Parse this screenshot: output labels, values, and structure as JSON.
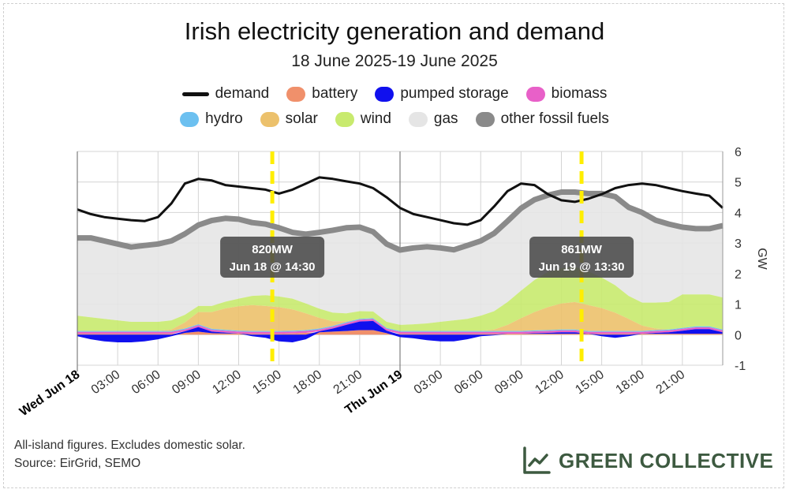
{
  "chart_data": {
    "type": "area",
    "title": "Irish electricity generation and demand",
    "subtitle": "18 June 2025-19 June 2025",
    "ylabel": "GW",
    "ylim": [
      -1,
      6
    ],
    "yticks": [
      "6",
      "5",
      "4",
      "3",
      "2",
      "1",
      "0",
      "-1"
    ],
    "xlim": [
      0,
      48
    ],
    "x_ticks": [
      {
        "label": "Wed Jun 18",
        "bold": true
      },
      {
        "label": "03:00"
      },
      {
        "label": "06:00"
      },
      {
        "label": "09:00"
      },
      {
        "label": "12:00"
      },
      {
        "label": "15:00"
      },
      {
        "label": "18:00"
      },
      {
        "label": "21:00"
      },
      {
        "label": "Thu Jun 19",
        "bold": true
      },
      {
        "label": "03:00"
      },
      {
        "label": "06:00"
      },
      {
        "label": "09:00"
      },
      {
        "label": "12:00"
      },
      {
        "label": "15:00"
      },
      {
        "label": "18:00"
      },
      {
        "label": "21:00"
      }
    ],
    "x": [
      0,
      1,
      2,
      3,
      4,
      5,
      6,
      7,
      8,
      9,
      10,
      11,
      12,
      13,
      14,
      15,
      16,
      17,
      18,
      19,
      20,
      21,
      22,
      23,
      24,
      25,
      26,
      27,
      28,
      29,
      30,
      31,
      32,
      33,
      34,
      35,
      36,
      37,
      38,
      39,
      40,
      41,
      42,
      43,
      44,
      45,
      46,
      47,
      48
    ],
    "series": [
      {
        "name": "battery",
        "color": "#f0906b",
        "values": [
          0.03,
          0.03,
          0.03,
          0.03,
          0.03,
          0.03,
          0.03,
          0.03,
          0.06,
          0.1,
          0.05,
          0.04,
          0.04,
          0.03,
          0.03,
          0.03,
          0.04,
          0.06,
          0.08,
          0.1,
          0.12,
          0.15,
          0.15,
          0.05,
          0.03,
          0.03,
          0.03,
          0.03,
          0.03,
          0.03,
          0.03,
          0.03,
          0.03,
          0.03,
          0.03,
          0.03,
          0.03,
          0.03,
          0.03,
          0.03,
          0.03,
          0.03,
          0.03,
          0.03,
          0.03,
          0.03,
          0.03,
          0.03,
          0.03
        ]
      },
      {
        "name": "pumped storage",
        "color": "#1010ee",
        "values": [
          -0.05,
          -0.15,
          -0.22,
          -0.25,
          -0.25,
          -0.22,
          -0.15,
          -0.05,
          0.05,
          0.15,
          0.05,
          0.03,
          0.0,
          -0.05,
          -0.1,
          -0.22,
          -0.25,
          -0.15,
          0.03,
          0.1,
          0.2,
          0.28,
          0.3,
          0.08,
          -0.08,
          -0.12,
          -0.18,
          -0.22,
          -0.22,
          -0.15,
          -0.05,
          -0.02,
          0.0,
          0.0,
          0.02,
          0.03,
          0.05,
          0.05,
          0.0,
          -0.05,
          -0.1,
          -0.05,
          0.0,
          0.03,
          0.05,
          0.1,
          0.15,
          0.15,
          0.05
        ]
      },
      {
        "name": "biomass",
        "color": "#e860c8",
        "values": [
          0.06,
          0.06,
          0.06,
          0.06,
          0.06,
          0.06,
          0.06,
          0.06,
          0.06,
          0.06,
          0.06,
          0.06,
          0.06,
          0.06,
          0.06,
          0.06,
          0.06,
          0.06,
          0.06,
          0.06,
          0.06,
          0.06,
          0.06,
          0.06,
          0.06,
          0.06,
          0.06,
          0.06,
          0.06,
          0.06,
          0.06,
          0.06,
          0.06,
          0.06,
          0.06,
          0.06,
          0.06,
          0.06,
          0.06,
          0.06,
          0.06,
          0.06,
          0.06,
          0.06,
          0.06,
          0.06,
          0.06,
          0.06,
          0.06
        ]
      },
      {
        "name": "hydro",
        "color": "#6cc0f0",
        "values": [
          0.03,
          0.03,
          0.03,
          0.03,
          0.03,
          0.03,
          0.03,
          0.03,
          0.03,
          0.03,
          0.03,
          0.03,
          0.03,
          0.03,
          0.03,
          0.03,
          0.03,
          0.03,
          0.03,
          0.03,
          0.03,
          0.03,
          0.03,
          0.03,
          0.03,
          0.03,
          0.03,
          0.03,
          0.03,
          0.03,
          0.03,
          0.03,
          0.03,
          0.03,
          0.03,
          0.03,
          0.03,
          0.03,
          0.03,
          0.03,
          0.03,
          0.03,
          0.03,
          0.03,
          0.03,
          0.03,
          0.03,
          0.03,
          0.03
        ]
      },
      {
        "name": "solar",
        "color": "#ecc16c",
        "values": [
          0,
          0,
          0,
          0,
          0,
          0,
          0,
          0.05,
          0.2,
          0.4,
          0.55,
          0.7,
          0.8,
          0.85,
          0.82,
          0.78,
          0.7,
          0.55,
          0.35,
          0.15,
          0.03,
          0,
          0,
          0,
          0,
          0,
          0,
          0,
          0,
          0,
          0,
          0.05,
          0.2,
          0.42,
          0.6,
          0.75,
          0.85,
          0.9,
          0.85,
          0.75,
          0.6,
          0.4,
          0.18,
          0.05,
          0,
          0,
          0,
          0,
          0
        ]
      },
      {
        "name": "wind",
        "color": "#c8ea6e",
        "values": [
          0.5,
          0.45,
          0.4,
          0.35,
          0.3,
          0.3,
          0.3,
          0.3,
          0.25,
          0.2,
          0.2,
          0.22,
          0.25,
          0.3,
          0.35,
          0.35,
          0.35,
          0.32,
          0.3,
          0.28,
          0.26,
          0.25,
          0.22,
          0.2,
          0.2,
          0.22,
          0.25,
          0.3,
          0.35,
          0.4,
          0.5,
          0.6,
          0.75,
          0.9,
          1.05,
          1.15,
          1.15,
          1.15,
          1.1,
          1.0,
          0.9,
          0.75,
          0.75,
          0.85,
          0.9,
          1.1,
          1.05,
          1.05,
          1.05
        ]
      },
      {
        "name": "gas",
        "color": "#e5e5e5",
        "values": [
          2.5,
          2.55,
          2.5,
          2.45,
          2.4,
          2.45,
          2.5,
          2.55,
          2.6,
          2.6,
          2.75,
          2.68,
          2.55,
          2.35,
          2.28,
          2.2,
          2.12,
          2.22,
          2.45,
          2.65,
          2.75,
          2.7,
          2.56,
          2.5,
          2.4,
          2.45,
          2.46,
          2.37,
          2.26,
          2.35,
          2.4,
          2.5,
          2.6,
          2.65,
          2.58,
          2.47,
          2.45,
          2.4,
          2.5,
          2.7,
          2.85,
          2.85,
          2.9,
          2.65,
          2.5,
          2.15,
          2.1,
          2.1,
          2.3
        ]
      },
      {
        "name": "other fossil fuels",
        "color": "#8a8a8a",
        "values": [
          0.05,
          0.05,
          0.05,
          0.05,
          0.05,
          0.05,
          0.05,
          0.05,
          0.05,
          0.05,
          0.05,
          0.05,
          0.05,
          0.05,
          0.05,
          0.05,
          0.05,
          0.05,
          0.05,
          0.05,
          0.05,
          0.05,
          0.05,
          0.05,
          0.05,
          0.05,
          0.05,
          0.05,
          0.05,
          0.05,
          0.05,
          0.05,
          0.05,
          0.05,
          0.05,
          0.05,
          0.05,
          0.05,
          0.05,
          0.05,
          0.05,
          0.05,
          0.05,
          0.05,
          0.05,
          0.05,
          0.05,
          0.05,
          0.05
        ]
      },
      {
        "name": "demand",
        "color": "#111111",
        "type": "line",
        "values": [
          4.1,
          3.95,
          3.85,
          3.8,
          3.75,
          3.72,
          3.85,
          4.3,
          4.95,
          5.1,
          5.05,
          4.9,
          4.85,
          4.8,
          4.75,
          4.62,
          4.75,
          4.95,
          5.15,
          5.1,
          5.02,
          4.95,
          4.8,
          4.5,
          4.15,
          3.95,
          3.85,
          3.75,
          3.65,
          3.6,
          3.75,
          4.2,
          4.7,
          4.95,
          4.9,
          4.6,
          4.4,
          4.35,
          4.45,
          4.6,
          4.8,
          4.9,
          4.95,
          4.9,
          4.8,
          4.7,
          4.62,
          4.55,
          4.15
        ]
      }
    ],
    "annotations": [
      {
        "label": "820MW",
        "sublabel": "Jun 18 @ 14:30",
        "x": 14.5
      },
      {
        "label": "861MW",
        "sublabel": "Jun 19 @ 13:30",
        "x": 37.5
      }
    ]
  },
  "legend": {
    "demand": "demand",
    "battery": "battery",
    "pumped_storage": "pumped storage",
    "biomass": "biomass",
    "hydro": "hydro",
    "solar": "solar",
    "wind": "wind",
    "gas": "gas",
    "other_fossil": "other fossil fuels"
  },
  "colors": {
    "demand": "#111111",
    "battery": "#f0906b",
    "pumped_storage": "#1010ee",
    "biomass": "#e860c8",
    "hydro": "#6cc0f0",
    "solar": "#ecc16c",
    "wind": "#c8ea6e",
    "gas": "#e5e5e5",
    "other_fossil": "#8a8a8a",
    "highlight": "#ffee00",
    "brand": "#3d5a40"
  },
  "footer": {
    "note": "All-island figures. Excludes domestic solar.",
    "source": "Source: EirGrid, SEMO"
  },
  "brand": {
    "name": "GREEN COLLECTIVE",
    "icon": "line-chart-icon"
  }
}
